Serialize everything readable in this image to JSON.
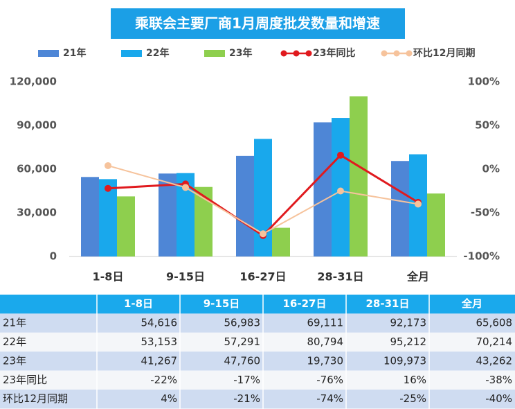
{
  "chart_data": {
    "type": "bar",
    "title": "乘联会主要厂商1月周度批发数量和增速",
    "categories": [
      "1-8日",
      "9-15日",
      "16-27日",
      "28-31日",
      "全月"
    ],
    "series": [
      {
        "name": "21年",
        "type": "bar",
        "color": "#4e86d6",
        "values": [
          54616,
          56983,
          69111,
          92173,
          65608
        ],
        "value_labels": [
          "54,616",
          "56,983",
          "69,111",
          "92,173",
          "65,608"
        ]
      },
      {
        "name": "22年",
        "type": "bar",
        "color": "#19a8ec",
        "values": [
          53153,
          57291,
          80794,
          95212,
          70214
        ],
        "value_labels": [
          "53,153",
          "57,291",
          "80,794",
          "95,212",
          "70,214"
        ]
      },
      {
        "name": "23年",
        "type": "bar",
        "color": "#8ecf4e",
        "values": [
          41267,
          47760,
          19730,
          109973,
          43262
        ],
        "value_labels": [
          "41,267",
          "47,760",
          "19,730",
          "109,973",
          "43,262"
        ]
      },
      {
        "name": "23年同比",
        "type": "line",
        "axis": "y2",
        "color": "#e01a1e",
        "values": [
          -22,
          -17,
          -76,
          16,
          -38
        ],
        "value_labels": [
          "-22%",
          "-17%",
          "-76%",
          "16%",
          "-38%"
        ]
      },
      {
        "name": "环比12月同期",
        "type": "line",
        "axis": "y2",
        "color": "#f6c39c",
        "values": [
          4,
          -21,
          -74,
          -25,
          -40
        ],
        "value_labels": [
          "4%",
          "-21%",
          "-74%",
          "-25%",
          "-40%"
        ]
      }
    ],
    "ylim": [
      0,
      120000
    ],
    "yticks": [
      0,
      {
        "value": 30000,
        "label": "30,000"
      },
      {
        "value": 60000,
        "label": "60,000"
      },
      {
        "value": 90000,
        "label": "90,000"
      },
      {
        "value": 120000,
        "label": "120,000"
      }
    ],
    "y2lim": [
      -100,
      100
    ],
    "y2ticks": [
      {
        "value": -100,
        "label": "-100%"
      },
      {
        "value": -50,
        "label": "-50%"
      },
      {
        "value": 0,
        "label": "0%"
      },
      {
        "value": 50,
        "label": "50%"
      },
      {
        "value": 100,
        "label": "100%"
      }
    ],
    "grid": false,
    "legend": "top"
  }
}
